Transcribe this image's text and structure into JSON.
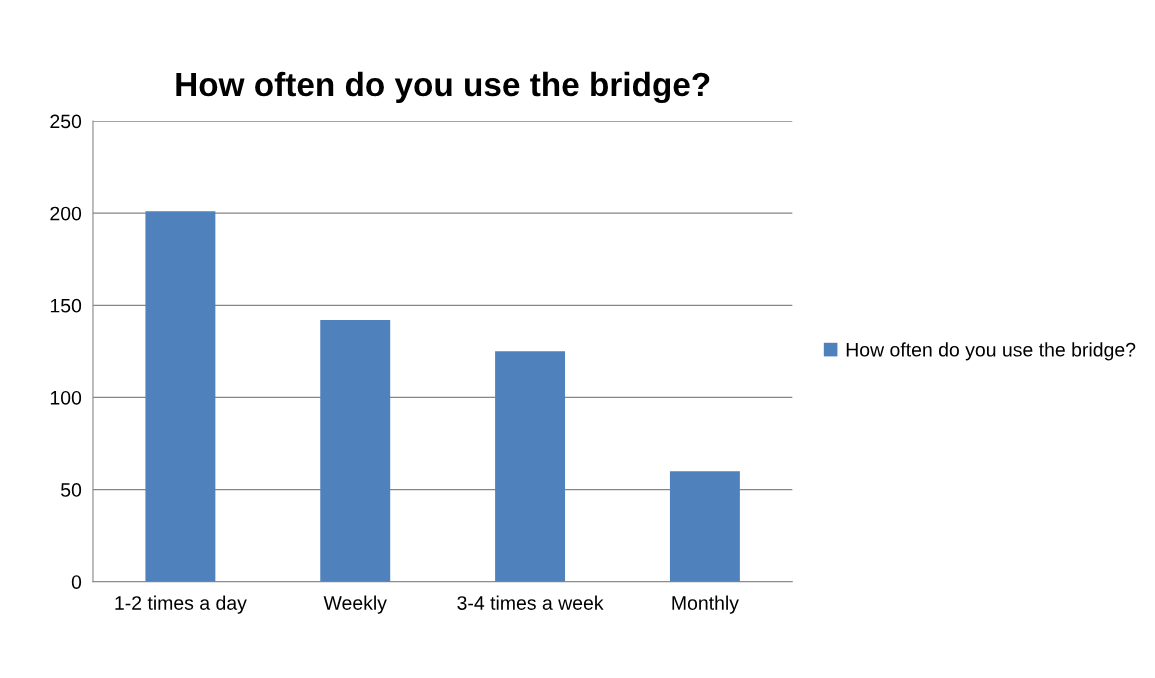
{
  "chart_data": {
    "type": "bar",
    "title": "How often do you use the bridge?",
    "categories": [
      "1-2 times a day",
      "Weekly",
      "3-4 times a week",
      "Monthly"
    ],
    "series": [
      {
        "name": "How often do you use the bridge?",
        "color": "#4f81bd",
        "values": [
          201,
          142,
          125,
          60
        ]
      }
    ],
    "ylim": [
      0,
      250
    ],
    "yticks": [
      0,
      50,
      100,
      150,
      200,
      250
    ],
    "grid": "y",
    "legend": "right"
  }
}
